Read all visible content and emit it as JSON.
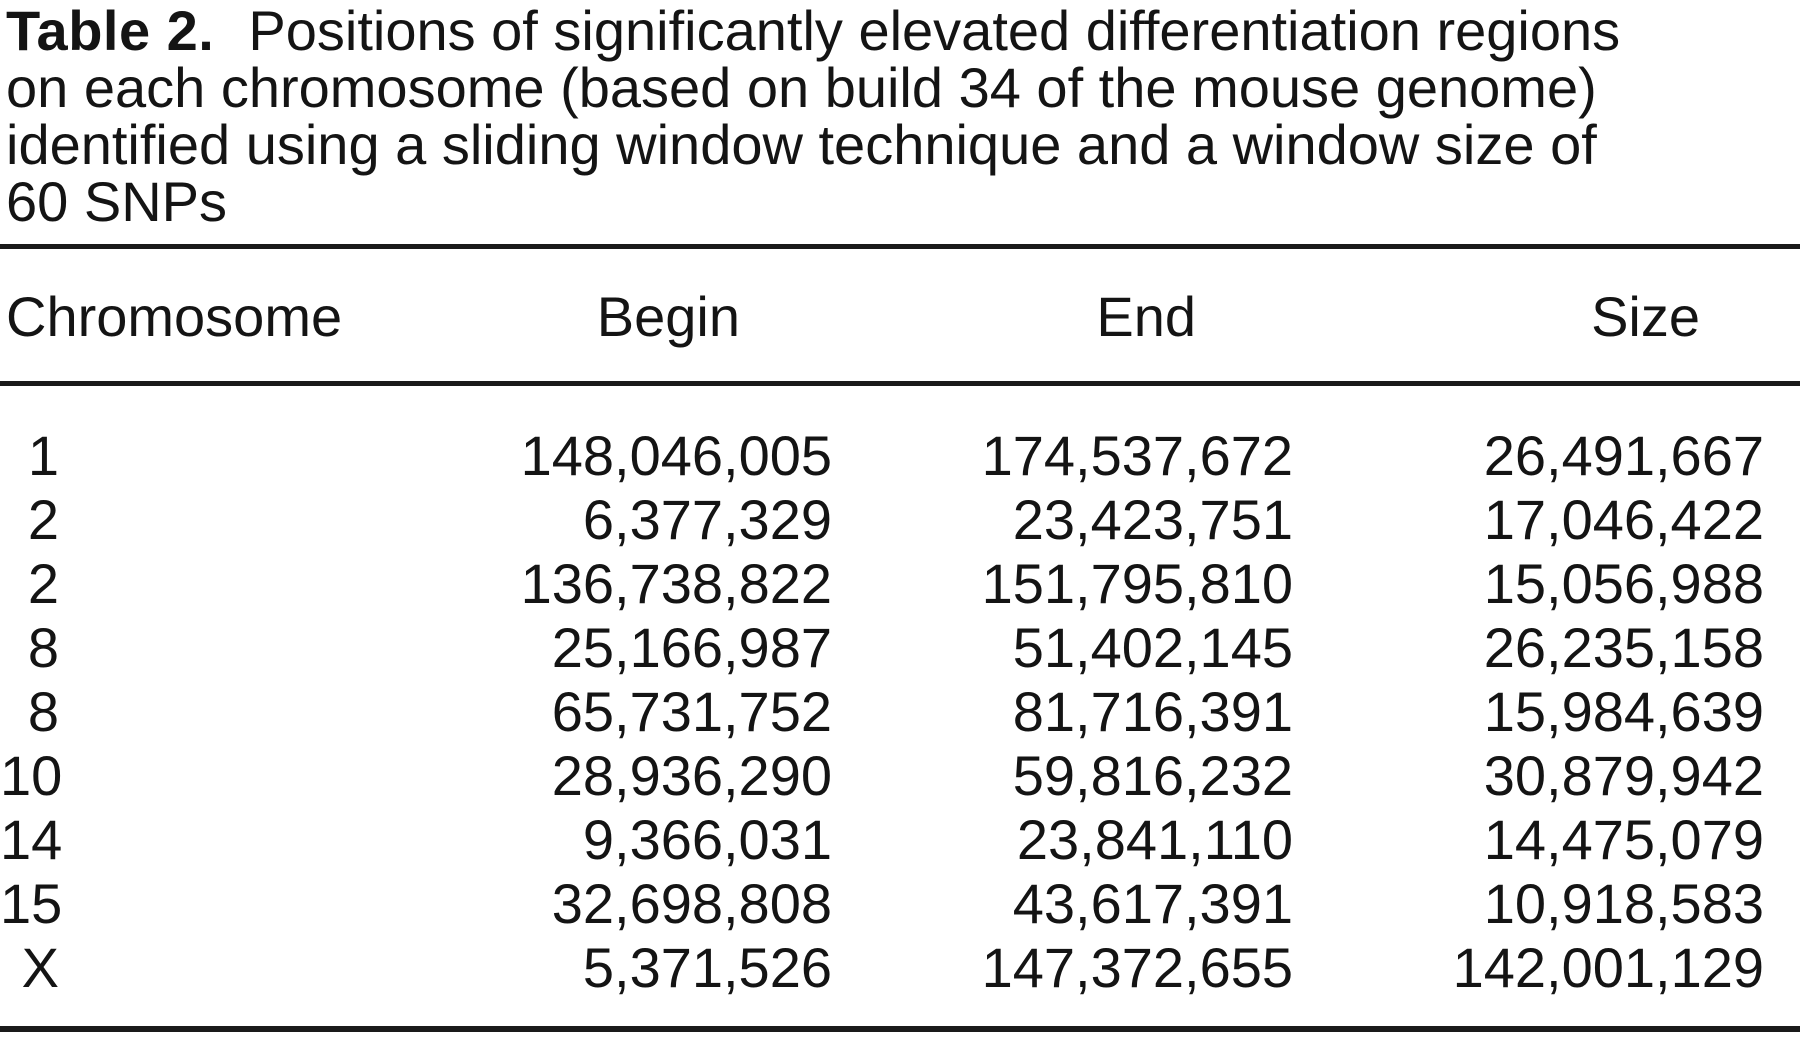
{
  "page": {
    "background_color": "#ffffff",
    "text_color": "#141414",
    "rule_color": "#1a1a1a"
  },
  "title": {
    "label": "Table 2.",
    "lines": [
      "Positions of significantly elevated differentiation regions",
      "on each chromosome (based on build 34 of the mouse genome)",
      "identified using a sliding window technique and a window size of",
      "60 SNPs"
    ]
  },
  "table": {
    "columns": [
      "Chromosome",
      "Begin",
      "End",
      "Size"
    ],
    "rows": [
      {
        "chromosome": "1",
        "begin": "148,046,005",
        "end": "174,537,672",
        "size": "26,491,667"
      },
      {
        "chromosome": "2",
        "begin": "6,377,329",
        "end": "23,423,751",
        "size": "17,046,422"
      },
      {
        "chromosome": "2",
        "begin": "136,738,822",
        "end": "151,795,810",
        "size": "15,056,988"
      },
      {
        "chromosome": "8",
        "begin": "25,166,987",
        "end": "51,402,145",
        "size": "26,235,158"
      },
      {
        "chromosome": "8",
        "begin": "65,731,752",
        "end": "81,716,391",
        "size": "15,984,639"
      },
      {
        "chromosome": "10",
        "begin": "28,936,290",
        "end": "59,816,232",
        "size": "30,879,942"
      },
      {
        "chromosome": "14",
        "begin": "9,366,031",
        "end": "23,841,110",
        "size": "14,475,079"
      },
      {
        "chromosome": "15",
        "begin": "32,698,808",
        "end": "43,617,391",
        "size": "10,918,583"
      },
      {
        "chromosome": "X",
        "begin": "5,371,526",
        "end": "147,372,655",
        "size": "142,001,129"
      }
    ]
  }
}
